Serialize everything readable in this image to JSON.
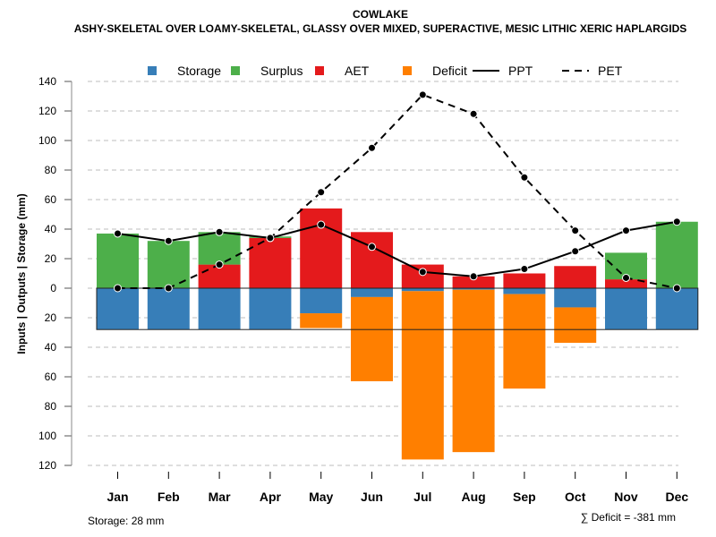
{
  "chart_data": {
    "type": "bar",
    "title": "COWLAKE",
    "subtitle": "ASHY-SKELETAL OVER LOAMY-SKELETAL, GLASSY OVER MIXED, SUPERACTIVE, MESIC LITHIC XERIC HAPLARGIDS",
    "xlabel": "",
    "ylabel": "Inputs | Outputs | Storage    (mm)",
    "categories": [
      "Jan",
      "Feb",
      "Mar",
      "Apr",
      "May",
      "Jun",
      "Jul",
      "Aug",
      "Sep",
      "Oct",
      "Nov",
      "Dec"
    ],
    "ylim": [
      -120,
      140
    ],
    "yticks": [
      140,
      120,
      100,
      80,
      60,
      40,
      20,
      0,
      -20,
      -40,
      -60,
      -80,
      -100,
      -120
    ],
    "ytick_labels": [
      "140",
      "120",
      "100",
      "80",
      "60",
      "40",
      "20",
      "0",
      "20",
      "40",
      "60",
      "80",
      "100",
      "120"
    ],
    "grid": true,
    "legend_position": "top",
    "legend": [
      {
        "name": "Storage",
        "kind": "box",
        "color": "#377EB8"
      },
      {
        "name": "Surplus",
        "kind": "box",
        "color": "#4DAF4A"
      },
      {
        "name": "AET",
        "kind": "box",
        "color": "#E41A1C"
      },
      {
        "name": "Deficit",
        "kind": "box",
        "color": "#FF7F00"
      },
      {
        "name": "PPT",
        "kind": "solid-line",
        "color": "#000000"
      },
      {
        "name": "PET",
        "kind": "dashed-line",
        "color": "#000000"
      }
    ],
    "series": [
      {
        "name": "AET",
        "color": "#E41A1C",
        "direction": "up",
        "values": [
          0,
          0,
          16,
          34,
          54,
          38,
          16,
          8,
          10,
          15,
          6,
          0
        ]
      },
      {
        "name": "Surplus",
        "color": "#4DAF4A",
        "direction": "up",
        "values": [
          37,
          32,
          22,
          1,
          0,
          0,
          0,
          0,
          0,
          0,
          18,
          45
        ]
      },
      {
        "name": "Storage",
        "color": "#377EB8",
        "direction": "down",
        "values": [
          28,
          28,
          28,
          28,
          17,
          6,
          2,
          1,
          4,
          13,
          28,
          28
        ]
      },
      {
        "name": "Deficit",
        "color": "#FF7F00",
        "direction": "down",
        "values": [
          0,
          0,
          0,
          0,
          10,
          57,
          114,
          110,
          64,
          24,
          0,
          0
        ]
      },
      {
        "name": "PPT",
        "color": "#000000",
        "style": "solid",
        "values": [
          37,
          32,
          38,
          34,
          43,
          28,
          11,
          8,
          13,
          25,
          39,
          45
        ]
      },
      {
        "name": "PET",
        "color": "#000000",
        "style": "dashed",
        "values": [
          0,
          0,
          16,
          34,
          65,
          95,
          131,
          118,
          75,
          39,
          7,
          0
        ]
      }
    ],
    "storage_capacity": 28,
    "annotations": {
      "storage_note": "Storage: 28 mm",
      "deficit_note": "∑ Deficit = -381 mm"
    }
  }
}
